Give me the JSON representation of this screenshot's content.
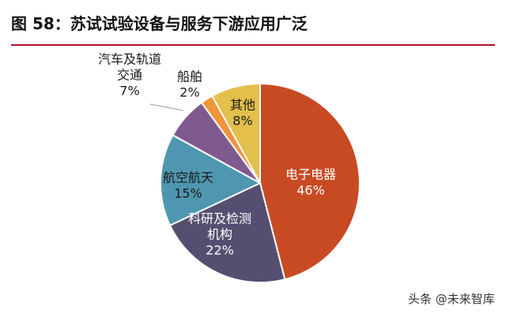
{
  "header": {
    "title": "图 58：苏试试验设备与服务下游应用广泛"
  },
  "watermark": "头条 @未来智库",
  "chart_data": {
    "type": "pie",
    "title": "",
    "slices": [
      {
        "label_lines": [
          "电子电器"
        ],
        "value": 46,
        "value_label": "46%",
        "color": "#c84a23",
        "label_color": "#ffffff"
      },
      {
        "label_lines": [
          "科研及检测",
          "机构"
        ],
        "value": 22,
        "value_label": "22%",
        "color": "#564e70",
        "label_color": "#ffffff"
      },
      {
        "label_lines": [
          "航空航天"
        ],
        "value": 15,
        "value_label": "15%",
        "color": "#4f97b0",
        "label_color": "#1a1a1a"
      },
      {
        "label_lines": [
          "汽车及轨道",
          "交通"
        ],
        "value": 7,
        "value_label": "7%",
        "color": "#7f5a8f",
        "label_color": "#1a1a1a"
      },
      {
        "label_lines": [
          "船舶"
        ],
        "value": 2,
        "value_label": "2%",
        "color": "#f0953a",
        "label_color": "#1a1a1a"
      },
      {
        "label_lines": [
          "其他"
        ],
        "value": 8,
        "value_label": "8%",
        "color": "#e3bf4c",
        "label_color": "#1a1a1a"
      }
    ]
  }
}
